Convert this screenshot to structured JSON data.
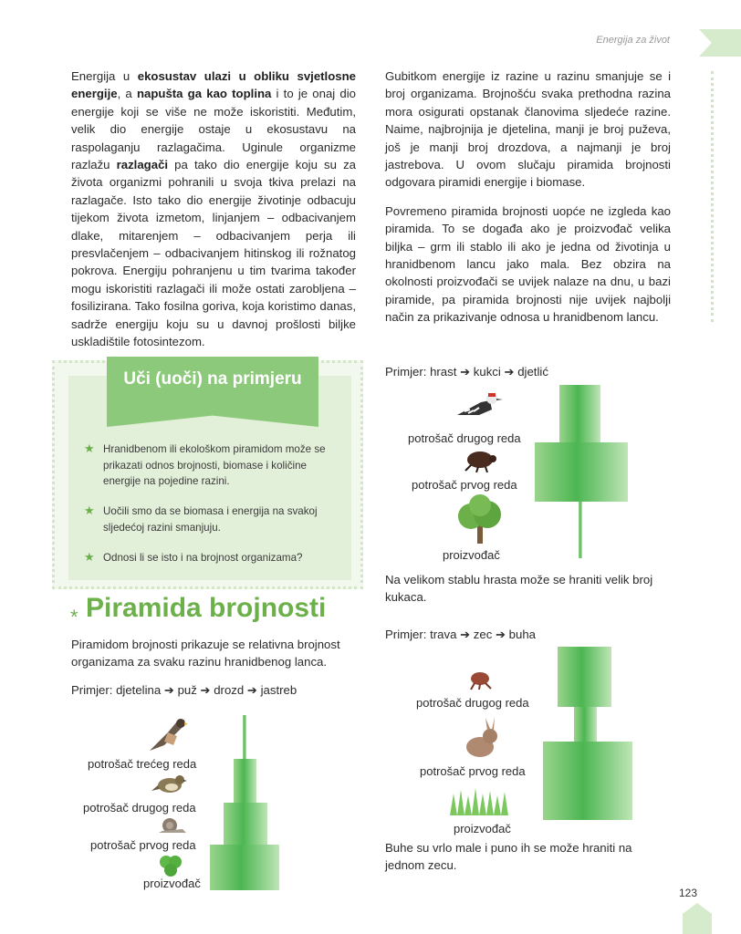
{
  "header": {
    "running_title": "Energija za život",
    "page_number": "123"
  },
  "left_column": [
    {
      "parts": [
        {
          "t": "Energija u ",
          "b": false
        },
        {
          "t": "ekosustav ulazi u obliku svjetlosne energije",
          "b": true
        },
        {
          "t": ", a ",
          "b": false
        },
        {
          "t": "napušta ga kao toplina",
          "b": true
        },
        {
          "t": " i to je onaj dio energije koji se više ne može iskoristiti. Međutim, velik dio energije ostaje u ekosustavu na raspolaganju razlagačima. Uginule organizme razlažu ",
          "b": false
        },
        {
          "t": "razlagači",
          "b": true
        },
        {
          "t": " pa tako dio energije koju su za života organizmi pohranili u svoja tkiva prelazi na razlagače. Isto tako dio energije životinje odbacuju tijekom života izmetom, linjanjem – odbacivanjem dlake, mitarenjem – odbacivanjem perja ili presvlačenjem – odbacivanjem hitinskog ili rožnatog pokrova. Energiju pohranjenu u tim tvarima također mogu iskoristiti razlagači ili može ostati zarobljena – fosilizirana. Tako fosilna goriva, koja koristimo danas, sadrže energiju koju su u davnoj prošlosti biljke uskladištile fotosintezom.",
          "b": false
        }
      ]
    }
  ],
  "right_column": [
    "Gubitkom energije iz razine u razinu smanjuje se i broj organizama. Brojnošću svaka prethodna razina mora osigurati opstanak članovima sljedeće razine. Naime, najbrojnija je djetelina, manji je broj puževa, još je manji broj drozdova, a najmanji je broj jastrebova. U ovom slučaju piramida brojnosti odgovara piramidi energije i biomase.",
    "Povremeno piramida brojnosti uopće ne izgleda kao piramida. To se događa ako je proizvođač velika biljka – grm ili stablo ili ako je jedna od životinja u hranidbenom lancu jako mala. Bez obzira na okolnosti proizvođači se uvijek nalaze na dnu, u bazi piramide, pa piramida brojnosti nije uvijek najbolji način za prikazivanje odnosa u hranidbenom lancu."
  ],
  "learn_box": {
    "title": "Uči (uoči) na primjeru",
    "bullets": [
      "Hranidbenom ili ekološkom piramidom može se prikazati odnos brojnosti, biomase i količine energije na pojedine razini.",
      "Uočili smo da se biomasa i energija na svakoj sljedećoj razini smanjuju.",
      "Odnosi li se isto i na brojnost organizama?"
    ]
  },
  "section": {
    "title": "Piramida brojnosti",
    "intro": "Piramidom brojnosti prikazuje se relativna brojnost organizama za svaku razinu hranidbenog lanca.",
    "example": "Primjer: djetelina ➔ puž ➔ drozd ➔ jastreb",
    "labels": [
      "potrošač trećeg reda",
      "potrošač drugog reda",
      "potrošač prvog reda",
      "proizvođač"
    ]
  },
  "example_oak": {
    "chain": "Primjer: hrast ➔ kukci ➔ djetlić",
    "labels": [
      "potrošač drugog reda",
      "potrošač prvog reda",
      "proizvođač"
    ],
    "caption": "Na velikom stablu hrasta može se hraniti velik broj kukaca."
  },
  "example_grass": {
    "chain": "Primjer: trava ➔ zec ➔ buha",
    "labels": [
      "potrošač drugog reda",
      "potrošač prvog reda",
      "proizvođač"
    ],
    "caption": "Buhe su vrlo male i puno ih se može hraniti na jednom zecu."
  },
  "icons": [
    "hawk-icon",
    "thrush-icon",
    "snail-icon",
    "clover-icon",
    "woodpecker-icon",
    "beetle-icon",
    "oak-tree-icon",
    "flea-icon",
    "rabbit-icon",
    "grass-icon",
    "star-icon"
  ],
  "colors": {
    "accent": "#6cb04a",
    "box": "#e2f0d9",
    "banner": "#8cc97a",
    "pyramid": "#4cb652"
  }
}
